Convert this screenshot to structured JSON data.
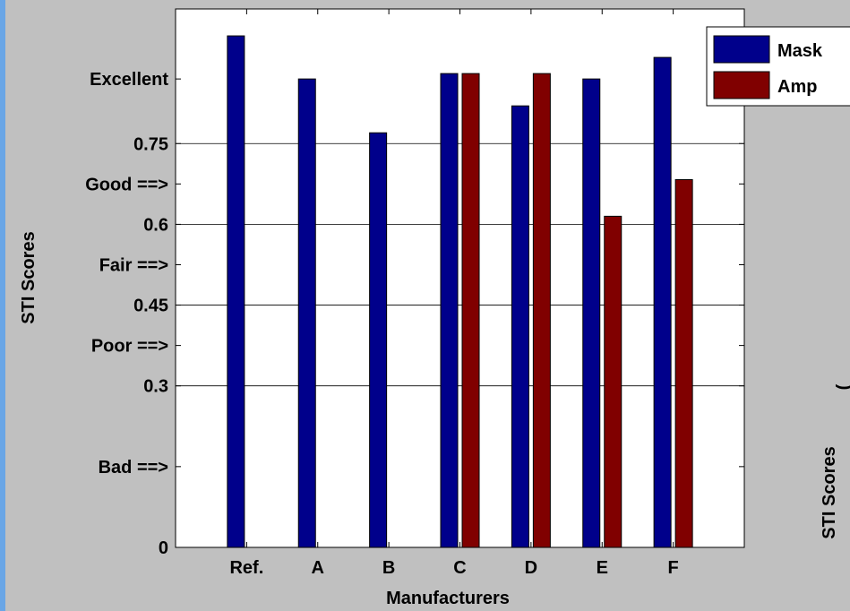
{
  "colors": {
    "background": "#c0c0c0",
    "plot_background": "#ffffff",
    "accent_strip": "#6aa6e6",
    "mask": "#00008b",
    "amp": "#800000"
  },
  "chart_data": {
    "type": "bar",
    "xlabel": "Manufacturers",
    "ylabel": "STI Scores",
    "categories": [
      "Ref.",
      "A",
      "B",
      "C",
      "D",
      "E",
      "F"
    ],
    "series": [
      {
        "name": "Mask",
        "values": [
          0.95,
          0.87,
          0.77,
          0.88,
          0.82,
          0.87,
          0.91
        ]
      },
      {
        "name": "Amp",
        "values": [
          null,
          null,
          null,
          0.88,
          0.88,
          0.615,
          0.683
        ]
      }
    ],
    "ylim": [
      0,
      1.0
    ],
    "yticks": [
      {
        "value": 0,
        "label": "0"
      },
      {
        "value": 0.15,
        "label": "Bad ==>"
      },
      {
        "value": 0.3,
        "label": "0.3"
      },
      {
        "value": 0.375,
        "label": "Poor ==>"
      },
      {
        "value": 0.45,
        "label": "0.45"
      },
      {
        "value": 0.525,
        "label": "Fair ==>"
      },
      {
        "value": 0.6,
        "label": "0.6"
      },
      {
        "value": 0.675,
        "label": "Good ==>"
      },
      {
        "value": 0.75,
        "label": "0.75"
      },
      {
        "value": 0.87,
        "label": "Excellent"
      }
    ],
    "gridlines_at": [
      0.3,
      0.45,
      0.6,
      0.75
    ],
    "legend_position": "top-right"
  },
  "second_panel": {
    "ylabel": "STI Scores",
    "partial_glyph": "("
  }
}
